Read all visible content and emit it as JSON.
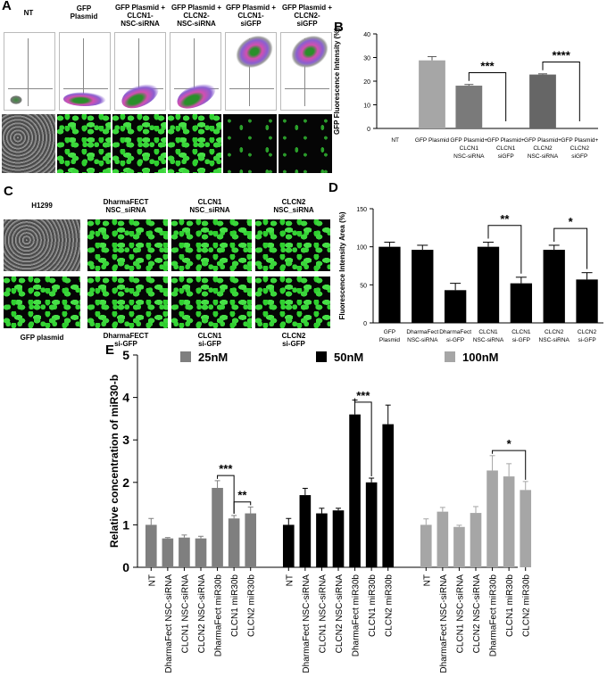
{
  "panel_letters": {
    "a": "A",
    "b": "B",
    "c": "C",
    "d": "D",
    "e": "E"
  },
  "panelA": {
    "columns": [
      "NT",
      "GFP Plasmid",
      "GFP Plasmid + CLCN1- NSC-siRNA",
      "GFP Plasmid + CLCN2- NSC-siRNA",
      "GFP Plasmid + CLCN1- siGFP",
      "GFP Plasmid + CLCN2- siGFP"
    ],
    "columns_lines": [
      [
        "NT"
      ],
      [
        "GFP",
        "Plasmid"
      ],
      [
        "GFP Plasmid +",
        "CLCN1-",
        "NSC-siRNA"
      ],
      [
        "GFP Plasmid +",
        "CLCN2-",
        "NSC-siRNA"
      ],
      [
        "GFP Plasmid +",
        "CLCN1-",
        "siGFP"
      ],
      [
        "GFP Plasmid +",
        "CLCN2-",
        "siGFP"
      ]
    ]
  },
  "panelC": {
    "top": [
      "H1299",
      "DharmaFECT NSC_siRNA",
      "CLCN1 NSC_siRNA",
      "CLCN2 NSC_siRNA"
    ],
    "top_lines": [
      [
        "H1299"
      ],
      [
        "DharmaFECT",
        "NSC_siRNA"
      ],
      [
        "CLCN1",
        "NSC_siRNA"
      ],
      [
        "CLCN2",
        "NSC_siRNA"
      ]
    ],
    "bottom": [
      "GFP plasmid",
      "DharmaFECT si-GFP",
      "CLCN1 si-GFP",
      "CLCN2 si-GFP"
    ],
    "bottom_lines": [
      [
        "GFP plasmid"
      ],
      [
        "DharmaFECT",
        "si-GFP"
      ],
      [
        "CLCN1",
        "si-GFP"
      ],
      [
        "CLCN2",
        "si-GFP"
      ]
    ]
  },
  "chart_data": [
    {
      "type": "bar",
      "panel": "B",
      "ylabel": "GFP Fluorescence Intensity (%)",
      "ylim": [
        0,
        40
      ],
      "yticks": [
        0,
        10,
        20,
        30,
        40
      ],
      "categories": [
        "NT",
        "GFP Plasmid",
        "GFP Plasmid+ CLCN1 NSC-siRNA",
        "GFP Plasmid+ CLCN1 siGFP",
        "GFP Plasmid+ CLCN2 NSC-siRNA",
        "GFP Plasmid+ CLCN2 siGFP"
      ],
      "category_lines": [
        [
          "NT"
        ],
        [
          "GFP Plasmid"
        ],
        [
          "GFP Plasmid+",
          "CLCN1",
          "NSC-siRNA"
        ],
        [
          "GFP Plasmid+",
          "CLCN1",
          "siGFP"
        ],
        [
          "GFP Plasmid+",
          "CLCN2",
          "NSC-siRNA"
        ],
        [
          "GFP Plasmid+",
          "CLCN2",
          "siGFP"
        ]
      ],
      "values": [
        0,
        28.8,
        18.1,
        0,
        22.8,
        0
      ],
      "errors": [
        0,
        1.6,
        0.5,
        0,
        0.3,
        0
      ],
      "colors": [
        "#888888",
        "#a6a6a6",
        "#7a7a7a",
        "#888888",
        "#666666",
        "#888888"
      ],
      "annotations": [
        {
          "from": 2,
          "to": 3,
          "text": "***"
        },
        {
          "from": 4,
          "to": 5,
          "text": "****"
        }
      ]
    },
    {
      "type": "bar",
      "panel": "D",
      "ylabel": "Fluorescence Intensity Area (%)",
      "ylim": [
        0,
        150
      ],
      "yticks": [
        0,
        50,
        100,
        150
      ],
      "categories": [
        "GFP Plasmid",
        "DharmaFect NSC-siRNA",
        "DharmaFect si-GFP",
        "CLCN1 NSC-siRNA",
        "CLCN1 si-GFP",
        "CLCN2 NSC-siRNA",
        "CLCN2 si-GFP"
      ],
      "category_lines": [
        [
          "GFP",
          "Plasmid"
        ],
        [
          "DharmaFect",
          "NSC-siRNA"
        ],
        [
          "DharmaFect",
          "si-GFP"
        ],
        [
          "CLCN1",
          "NSC-siRNA"
        ],
        [
          "CLCN1",
          "si-GFP"
        ],
        [
          "CLCN2",
          "NSC-siRNA"
        ],
        [
          "CLCN2",
          "si-GFP"
        ]
      ],
      "values": [
        100,
        96,
        43,
        100,
        52,
        96,
        57
      ],
      "errors": [
        6,
        6,
        9,
        6,
        8,
        6,
        9
      ],
      "color": "#000000",
      "annotations": [
        {
          "from": 3,
          "to": 4,
          "text": "**"
        },
        {
          "from": 5,
          "to": 6,
          "text": "*"
        }
      ]
    },
    {
      "type": "bar",
      "panel": "E",
      "ylabel": "Relative concentration of miR30-b",
      "ylim": [
        0,
        5
      ],
      "yticks": [
        0,
        1,
        2,
        3,
        4,
        5
      ],
      "legend": [
        {
          "name": "25nM",
          "color": "#7f7f7f"
        },
        {
          "name": "50nM",
          "color": "#000000"
        },
        {
          "name": "100nM",
          "color": "#a6a6a6"
        }
      ],
      "categories": [
        "NT",
        "DharmaFect NSC-siRNA",
        "CLCN1 NSC-siRNA",
        "CLCN2 NSC-siRNA",
        "DharmaFect miR30b",
        "CLCN1 miR30b",
        "CLCN2 miR30b"
      ],
      "series": [
        {
          "name": "25nM",
          "values": [
            1.0,
            0.68,
            0.7,
            0.68,
            1.87,
            1.15,
            1.27
          ],
          "errors": [
            0.15,
            0.02,
            0.06,
            0.05,
            0.17,
            0.07,
            0.15
          ]
        },
        {
          "name": "50nM",
          "values": [
            1.0,
            1.7,
            1.27,
            1.34,
            3.6,
            2.0,
            3.37
          ],
          "errors": [
            0.15,
            0.16,
            0.12,
            0.05,
            0.34,
            0.1,
            0.45
          ]
        },
        {
          "name": "100nM",
          "values": [
            1.0,
            1.31,
            0.95,
            1.28,
            2.28,
            2.14,
            1.82
          ],
          "errors": [
            0.14,
            0.1,
            0.04,
            0.15,
            0.35,
            0.3,
            0.2
          ]
        }
      ],
      "annotations": [
        {
          "series": 0,
          "from": 4,
          "to": 5,
          "text": "***"
        },
        {
          "series": 0,
          "from": 5,
          "to": 6,
          "text": "**"
        },
        {
          "series": 1,
          "from": 4,
          "to": 5,
          "text": "***"
        },
        {
          "series": 2,
          "from": 4,
          "to": 6,
          "text": "*"
        }
      ]
    }
  ]
}
